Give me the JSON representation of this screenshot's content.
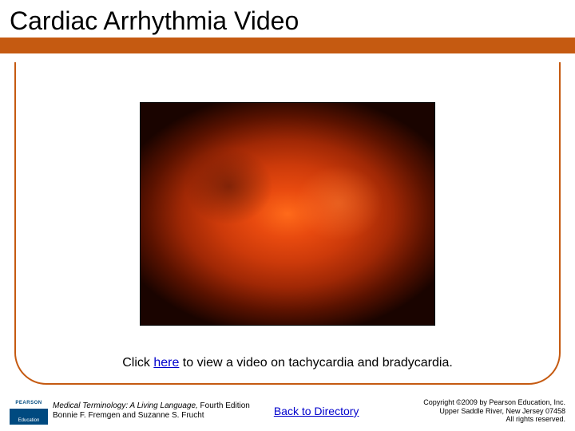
{
  "title": "Cardiac Arrhythmia Video",
  "colors": {
    "accent": "#c55a11",
    "link": "#0000cc",
    "publisher_bg": "#004a80"
  },
  "caption": {
    "prefix": "Click ",
    "link_text": "here",
    "suffix": " to view a video on tachycardia and bradycardia."
  },
  "footer": {
    "publisher_top": "PEARSON",
    "publisher_bottom": "Education",
    "book_title": "Medical Terminology: A Living Language,",
    "book_edition": " Fourth Edition",
    "authors": "Bonnie F. Fremgen and Suzanne S. Frucht",
    "back_link": "Back to Directory",
    "copyright_line1": "Copyright ©2009 by Pearson Education, Inc.",
    "copyright_line2": "Upper Saddle River, New Jersey 07458",
    "copyright_line3": "All rights reserved."
  }
}
